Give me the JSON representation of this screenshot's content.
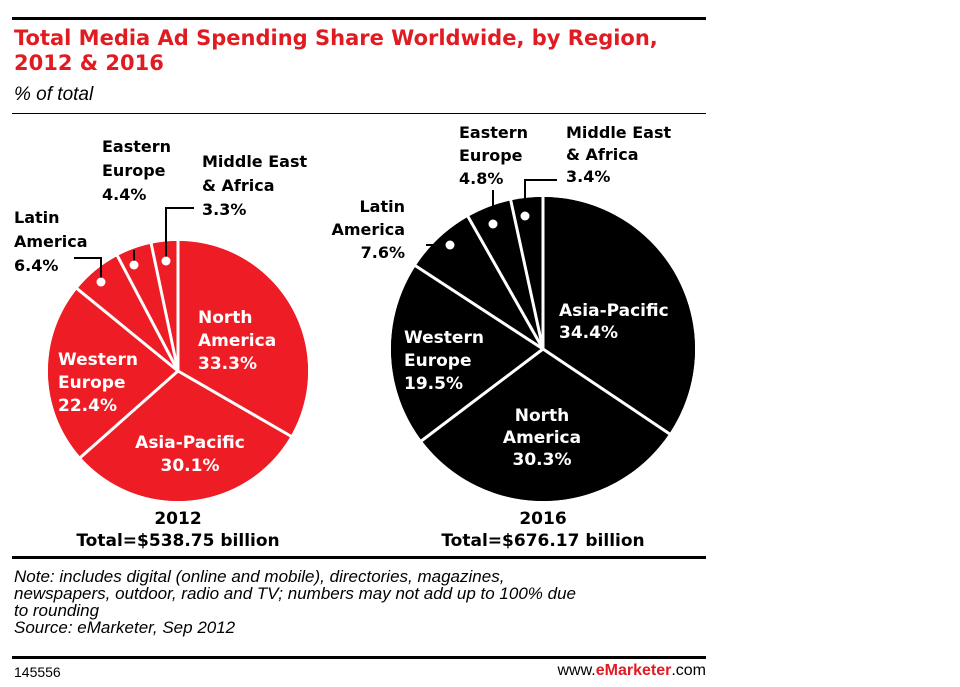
{
  "title": "Total Media Ad Spending Share Worldwide, by Region, 2012 & 2016",
  "subtitle": "% of total",
  "colors": {
    "accent": "#e11b22",
    "pie_2012": "#ee1c25",
    "pie_2016": "#000000",
    "divider": "#ffffff"
  },
  "chart_data": [
    {
      "type": "pie",
      "year_label": "2012",
      "total_label": "Total=$538.75 billion",
      "unit": "% of total",
      "slices": [
        {
          "name": "North America",
          "value": 33.3,
          "label_lines": [
            "North",
            "America",
            "33.3%"
          ]
        },
        {
          "name": "Asia-Pacific",
          "value": 30.1,
          "label_lines": [
            "Asia-Pacific",
            "30.1%"
          ]
        },
        {
          "name": "Western Europe",
          "value": 22.4,
          "label_lines": [
            "Western",
            "Europe",
            "22.4%"
          ]
        },
        {
          "name": "Latin America",
          "value": 6.4,
          "label_lines": [
            "Latin",
            "America",
            "6.4%"
          ]
        },
        {
          "name": "Eastern Europe",
          "value": 4.4,
          "label_lines": [
            "Eastern",
            "Europe",
            "4.4%"
          ]
        },
        {
          "name": "Middle East & Africa",
          "value": 3.3,
          "label_lines": [
            "Middle East",
            "& Africa",
            "3.3%"
          ]
        }
      ]
    },
    {
      "type": "pie",
      "year_label": "2016",
      "total_label": "Total=$676.17 billion",
      "unit": "% of total",
      "slices": [
        {
          "name": "Asia-Pacific",
          "value": 34.4,
          "label_lines": [
            "Asia-Pacific",
            "34.4%"
          ]
        },
        {
          "name": "North America",
          "value": 30.3,
          "label_lines": [
            "North",
            "America",
            "30.3%"
          ]
        },
        {
          "name": "Western Europe",
          "value": 19.5,
          "label_lines": [
            "Western",
            "Europe",
            "19.5%"
          ]
        },
        {
          "name": "Latin America",
          "value": 7.6,
          "label_lines": [
            "Latin",
            "America",
            "7.6%"
          ]
        },
        {
          "name": "Eastern Europe",
          "value": 4.8,
          "label_lines": [
            "Eastern",
            "Europe",
            "4.8%"
          ]
        },
        {
          "name": "Middle East & Africa",
          "value": 3.4,
          "label_lines": [
            "Middle East",
            "& Africa",
            "3.4%"
          ]
        }
      ]
    }
  ],
  "note": {
    "lines": [
      "Note: includes digital (online and mobile), directories, magazines,",
      "newspapers, outdoor, radio and TV; numbers may not add up to 100% due",
      "to rounding"
    ],
    "source": "Source: eMarketer, Sep 2012"
  },
  "footer": {
    "chart_id": "145556",
    "site_prefix": "www.",
    "site_brand": "eMarketer",
    "site_suffix": ".com"
  }
}
